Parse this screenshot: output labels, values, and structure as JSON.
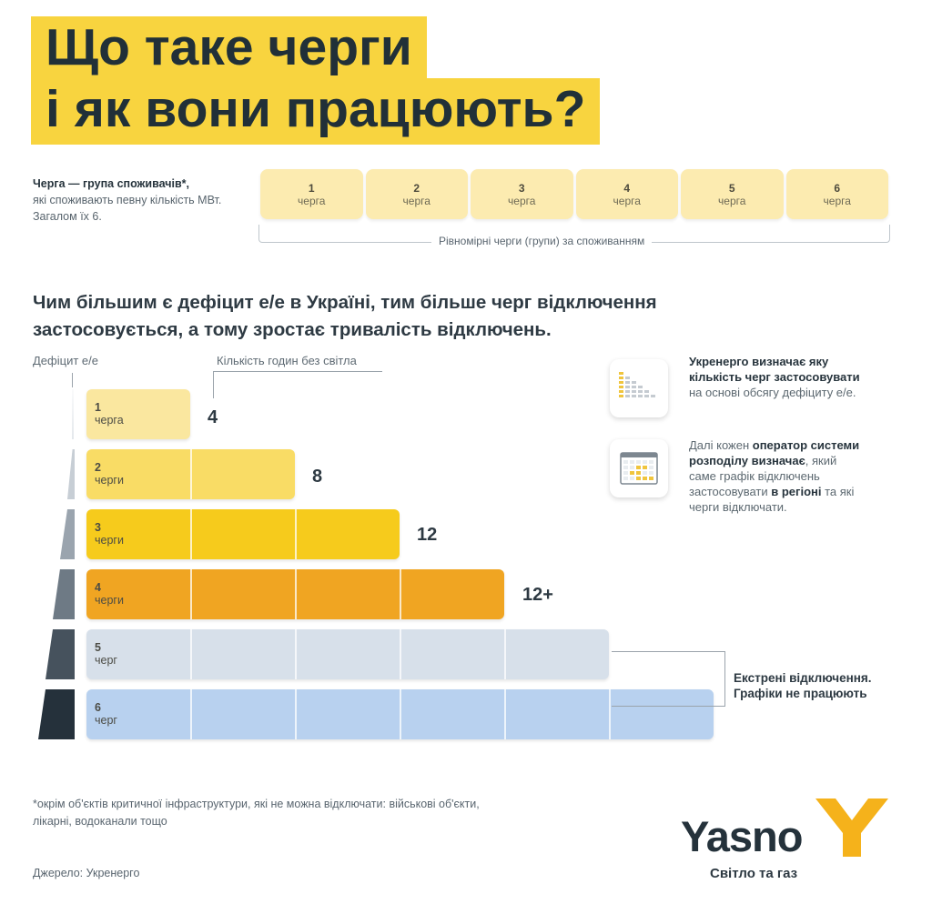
{
  "title": {
    "line1": "Що таке черги",
    "line2": "і як вони працюють?"
  },
  "intro": {
    "bold": "Черга — група споживачів*,",
    "rest": "які споживають певну кількість МВт. Загалом їх 6."
  },
  "queues": [
    {
      "number": "1",
      "word": "черга"
    },
    {
      "number": "2",
      "word": "черга"
    },
    {
      "number": "3",
      "word": "черга"
    },
    {
      "number": "4",
      "word": "черга"
    },
    {
      "number": "5",
      "word": "черга"
    },
    {
      "number": "6",
      "word": "черга"
    }
  ],
  "strip_caption": "Рівномірні черги (групи) за споживанням",
  "headline": "Чим більшим є дефіцит е/е в Україні, тим більше черг відключення застосовується, а тому зростає тривалість відключень.",
  "axis": {
    "deficit": "Дефіцит е/е",
    "hours": "Кількість годин без світла"
  },
  "levels": [
    {
      "number": "1",
      "word": "черга",
      "hours": "4",
      "color": "#fae79f"
    },
    {
      "number": "2",
      "word": "черги",
      "hours": "8",
      "color": "#f9dc65"
    },
    {
      "number": "3",
      "word": "черги",
      "hours": "12",
      "color": "#f6cb1c"
    },
    {
      "number": "4",
      "word": "черги",
      "hours": "12+",
      "color": "#f0a522"
    },
    {
      "number": "5",
      "word": "черг",
      "hours": "",
      "color": "#d7e0ea"
    },
    {
      "number": "6",
      "word": "черг",
      "hours": "",
      "color": "#b8d1ef"
    }
  ],
  "emergency": "Екстрені відключення. Графіки не працюють",
  "info": [
    {
      "icon": "queue-bars-icon",
      "bold": "Укренерго визначає яку кількість черг застосовувати",
      "rest": " на основі обсягу дефіциту е/е."
    },
    {
      "icon": "schedule-grid-icon",
      "pre": "Далі кожен ",
      "bold1": "оператор системи розподілу визначає",
      "mid": ", який саме графік відключень застосовувати ",
      "bold2": "в регіоні",
      "rest": " та які черги відключати."
    }
  ],
  "footnote": "*окрім об'єктів критичної інфраструктури, які не можна відключати: військові об'єкти, лікарні, водоканали тощо",
  "source": "Джерело: Укренерго",
  "brand": {
    "name": "Yasno",
    "tagline": "Світло та газ",
    "accent": "#f5b21b"
  }
}
